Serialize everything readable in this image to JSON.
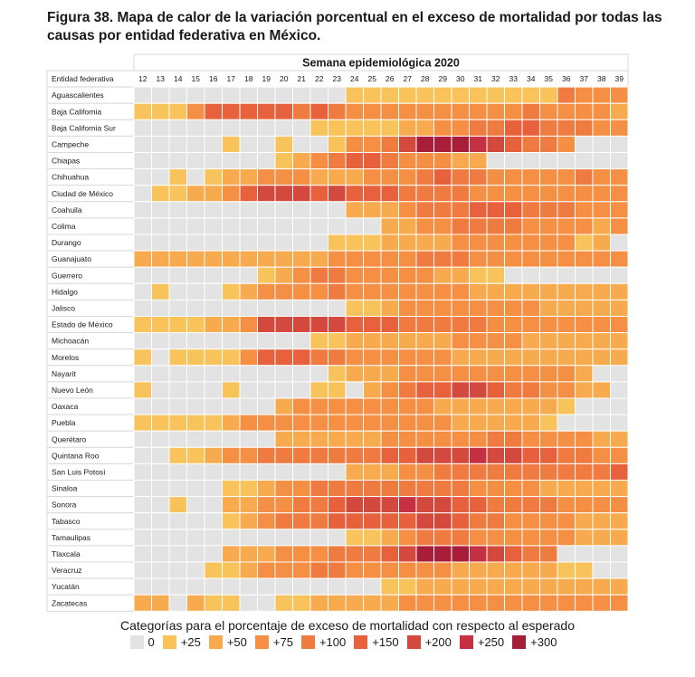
{
  "figure_title": "Figura 38. Mapa de calor de la variación porcentual en el exceso de mortalidad por todas las causas por entidad federativa en México.",
  "chart_data": {
    "type": "heatmap",
    "title": "Figura 38. Mapa de calor de la variación porcentual en el exceso de mortalidad por todas las causas por entidad federativa en México.",
    "xlabel": "Semana epidemiológica 2020",
    "row_header": "Entidad federativa",
    "weeks": [
      "12",
      "13",
      "14",
      "15",
      "16",
      "17",
      "18",
      "19",
      "20",
      "21",
      "22",
      "23",
      "24",
      "25",
      "26",
      "27",
      "28",
      "29",
      "30",
      "31",
      "32",
      "33",
      "34",
      "35",
      "36",
      "37",
      "38",
      "39"
    ],
    "states": [
      "Aguascalientes",
      "Baja California",
      "Baja California Sur",
      "Campeche",
      "Chiapas",
      "Chihuahua",
      "Ciudad de México",
      "Coahuila",
      "Colima",
      "Durango",
      "Guanajuato",
      "Guerrero",
      "Hidalgo",
      "Jalisco",
      "Estado de México",
      "Michoacán",
      "Morelos",
      "Nayarit",
      "Nuevo León",
      "Oaxaca",
      "Puebla",
      "Querétaro",
      "Quintana Roo",
      "San Luis Potosí",
      "Sinaloa",
      "Sonora",
      "Tabasco",
      "Tamaulipas",
      "Tlaxcala",
      "Veracruz",
      "Yucatán",
      "Zacatecas"
    ],
    "category_labels": [
      "0",
      "+25",
      "+50",
      "+75",
      "+100",
      "+150",
      "+200",
      "+250",
      "+300"
    ],
    "colors": [
      "#e3e3e3",
      "#f8c35a",
      "#f7ab4e",
      "#f48f44",
      "#ef7b40",
      "#e7613d",
      "#d4493d",
      "#c53042",
      "#a81d3a"
    ],
    "values": [
      [
        0,
        0,
        0,
        0,
        0,
        0,
        0,
        0,
        0,
        0,
        0,
        0,
        1,
        1,
        1,
        1,
        1,
        1,
        1,
        1,
        1,
        1,
        1,
        1,
        4,
        3,
        3,
        3
      ],
      [
        1,
        1,
        1,
        3,
        5,
        5,
        5,
        5,
        5,
        4,
        5,
        4,
        3,
        3,
        3,
        3,
        3,
        3,
        3,
        3,
        3,
        3,
        4,
        3,
        3,
        3,
        3,
        2
      ],
      [
        0,
        0,
        0,
        0,
        0,
        0,
        0,
        0,
        0,
        0,
        1,
        1,
        1,
        1,
        1,
        2,
        2,
        3,
        3,
        4,
        4,
        5,
        5,
        4,
        4,
        4,
        3,
        3
      ],
      [
        0,
        0,
        0,
        0,
        0,
        1,
        0,
        0,
        1,
        0,
        0,
        1,
        3,
        3,
        4,
        6,
        8,
        8,
        8,
        7,
        6,
        5,
        4,
        4,
        3,
        0,
        0,
        0
      ],
      [
        0,
        0,
        0,
        0,
        0,
        0,
        0,
        0,
        1,
        2,
        3,
        4,
        5,
        5,
        4,
        3,
        3,
        3,
        2,
        2,
        0,
        0,
        0,
        0,
        0,
        0,
        0,
        0
      ],
      [
        0,
        0,
        1,
        0,
        1,
        2,
        2,
        3,
        3,
        3,
        2,
        2,
        2,
        3,
        3,
        3,
        4,
        5,
        4,
        4,
        3,
        3,
        3,
        3,
        3,
        4,
        3,
        3
      ],
      [
        0,
        1,
        1,
        2,
        2,
        3,
        5,
        6,
        6,
        6,
        5,
        6,
        5,
        5,
        5,
        4,
        4,
        4,
        4,
        3,
        3,
        3,
        3,
        3,
        3,
        3,
        3,
        3
      ],
      [
        0,
        0,
        0,
        0,
        0,
        0,
        0,
        0,
        0,
        0,
        0,
        0,
        2,
        2,
        2,
        3,
        4,
        4,
        4,
        5,
        5,
        5,
        4,
        4,
        4,
        3,
        3,
        3
      ],
      [
        0,
        0,
        0,
        0,
        0,
        0,
        0,
        0,
        0,
        0,
        0,
        0,
        0,
        0,
        2,
        2,
        3,
        3,
        4,
        4,
        4,
        4,
        3,
        3,
        3,
        3,
        2,
        3
      ],
      [
        0,
        0,
        0,
        0,
        0,
        0,
        0,
        0,
        0,
        0,
        0,
        1,
        1,
        1,
        2,
        2,
        2,
        2,
        3,
        3,
        3,
        3,
        3,
        3,
        3,
        1,
        2,
        0
      ],
      [
        2,
        2,
        2,
        2,
        2,
        2,
        2,
        2,
        2,
        2,
        2,
        3,
        3,
        3,
        3,
        3,
        4,
        4,
        4,
        3,
        3,
        3,
        3,
        3,
        3,
        3,
        3,
        3
      ],
      [
        0,
        0,
        0,
        0,
        0,
        0,
        0,
        1,
        2,
        3,
        4,
        4,
        3,
        3,
        3,
        3,
        3,
        2,
        2,
        1,
        1,
        0,
        0,
        0,
        0,
        0,
        0,
        0
      ],
      [
        0,
        1,
        0,
        0,
        0,
        1,
        2,
        3,
        3,
        3,
        3,
        4,
        3,
        3,
        3,
        3,
        3,
        3,
        3,
        2,
        2,
        2,
        2,
        2,
        2,
        2,
        2,
        2
      ],
      [
        0,
        0,
        0,
        0,
        0,
        0,
        0,
        0,
        0,
        0,
        0,
        0,
        1,
        1,
        2,
        3,
        3,
        3,
        3,
        3,
        3,
        3,
        3,
        2,
        2,
        2,
        2,
        2
      ],
      [
        1,
        1,
        1,
        1,
        2,
        2,
        3,
        6,
        6,
        6,
        6,
        6,
        5,
        5,
        5,
        4,
        4,
        4,
        4,
        4,
        3,
        3,
        3,
        3,
        3,
        3,
        3,
        3
      ],
      [
        0,
        0,
        0,
        0,
        0,
        0,
        0,
        0,
        0,
        0,
        1,
        1,
        2,
        2,
        2,
        2,
        2,
        2,
        3,
        3,
        3,
        3,
        2,
        2,
        2,
        2,
        2,
        2
      ],
      [
        1,
        0,
        1,
        1,
        1,
        1,
        3,
        5,
        5,
        5,
        4,
        4,
        3,
        3,
        3,
        3,
        3,
        3,
        2,
        2,
        2,
        2,
        2,
        2,
        2,
        2,
        2,
        2
      ],
      [
        0,
        0,
        0,
        0,
        0,
        0,
        0,
        0,
        0,
        0,
        0,
        1,
        2,
        2,
        2,
        3,
        3,
        3,
        3,
        3,
        3,
        3,
        3,
        3,
        3,
        2,
        0,
        0
      ],
      [
        1,
        0,
        0,
        0,
        0,
        1,
        0,
        0,
        0,
        0,
        1,
        1,
        0,
        2,
        3,
        4,
        5,
        5,
        6,
        6,
        5,
        4,
        4,
        3,
        3,
        2,
        2,
        0
      ],
      [
        0,
        0,
        0,
        0,
        0,
        0,
        0,
        0,
        2,
        3,
        3,
        3,
        3,
        3,
        3,
        3,
        3,
        2,
        2,
        2,
        2,
        2,
        2,
        2,
        1,
        0,
        0,
        0
      ],
      [
        1,
        1,
        1,
        1,
        1,
        2,
        3,
        3,
        3,
        3,
        3,
        3,
        3,
        3,
        3,
        3,
        3,
        3,
        2,
        2,
        2,
        2,
        2,
        1,
        0,
        0,
        0,
        0
      ],
      [
        0,
        0,
        0,
        0,
        0,
        0,
        0,
        0,
        2,
        2,
        2,
        2,
        2,
        2,
        3,
        3,
        3,
        3,
        3,
        3,
        4,
        4,
        3,
        3,
        3,
        3,
        2,
        2
      ],
      [
        0,
        0,
        1,
        1,
        2,
        3,
        3,
        4,
        4,
        4,
        4,
        4,
        4,
        4,
        5,
        5,
        6,
        6,
        6,
        7,
        6,
        6,
        5,
        5,
        4,
        4,
        3,
        3
      ],
      [
        0,
        0,
        0,
        0,
        0,
        0,
        0,
        0,
        0,
        0,
        0,
        0,
        2,
        2,
        2,
        3,
        3,
        4,
        4,
        4,
        4,
        4,
        4,
        4,
        4,
        4,
        4,
        5
      ],
      [
        0,
        0,
        0,
        0,
        0,
        1,
        1,
        2,
        3,
        3,
        4,
        4,
        4,
        4,
        4,
        4,
        4,
        4,
        4,
        3,
        3,
        3,
        3,
        2,
        2,
        2,
        2,
        2
      ],
      [
        0,
        0,
        1,
        0,
        0,
        2,
        2,
        3,
        3,
        4,
        4,
        5,
        6,
        6,
        6,
        7,
        6,
        6,
        5,
        5,
        4,
        4,
        4,
        4,
        3,
        3,
        3,
        3
      ],
      [
        0,
        0,
        0,
        0,
        0,
        1,
        2,
        3,
        4,
        4,
        4,
        5,
        5,
        5,
        5,
        5,
        6,
        6,
        5,
        4,
        4,
        3,
        3,
        3,
        3,
        2,
        2,
        2
      ],
      [
        0,
        0,
        0,
        0,
        0,
        0,
        0,
        0,
        0,
        0,
        0,
        0,
        1,
        1,
        2,
        3,
        4,
        4,
        4,
        3,
        3,
        3,
        3,
        3,
        3,
        2,
        2,
        2
      ],
      [
        0,
        0,
        0,
        0,
        0,
        2,
        2,
        2,
        3,
        3,
        3,
        4,
        4,
        4,
        5,
        6,
        8,
        8,
        8,
        7,
        6,
        5,
        4,
        4,
        0,
        0,
        0,
        0
      ],
      [
        0,
        0,
        0,
        0,
        1,
        1,
        2,
        3,
        3,
        3,
        4,
        4,
        3,
        3,
        3,
        3,
        3,
        3,
        2,
        2,
        2,
        2,
        2,
        2,
        1,
        1,
        0,
        0
      ],
      [
        0,
        0,
        0,
        0,
        0,
        0,
        0,
        0,
        0,
        0,
        0,
        0,
        0,
        0,
        1,
        1,
        2,
        2,
        2,
        2,
        2,
        2,
        2,
        2,
        2,
        2,
        2,
        2
      ],
      [
        2,
        2,
        0,
        2,
        1,
        1,
        0,
        0,
        1,
        1,
        2,
        2,
        2,
        2,
        2,
        3,
        3,
        3,
        3,
        3,
        3,
        3,
        3,
        3,
        3,
        3,
        3,
        3
      ]
    ]
  }
}
